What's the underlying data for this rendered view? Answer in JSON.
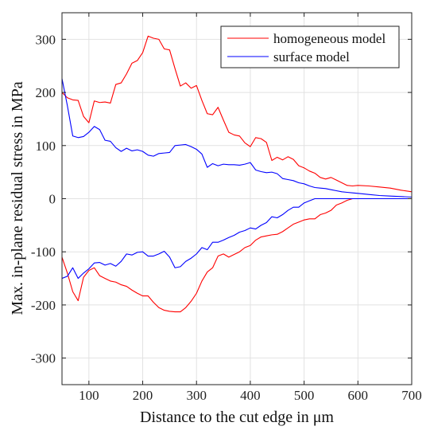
{
  "chart_data": {
    "type": "line",
    "xlabel": "Distance to the cut edge in μm",
    "ylabel": "Max. in-plane residual stress in MPa",
    "xlim": [
      50,
      700
    ],
    "ylim": [
      -350,
      350
    ],
    "xticks": [
      100,
      200,
      300,
      400,
      500,
      600,
      700
    ],
    "yticks": [
      -300,
      -200,
      -100,
      0,
      100,
      200,
      300
    ],
    "grid": true,
    "legend_position": "top-right",
    "series": [
      {
        "name": "homogeneous model",
        "color": "#ff0000",
        "lines": [
          [
            [
              50,
              200
            ],
            [
              60,
              190
            ],
            [
              70,
              186
            ],
            [
              80,
              185
            ],
            [
              90,
              155
            ],
            [
              100,
              143
            ],
            [
              110,
              184
            ],
            [
              120,
              181
            ],
            [
              130,
              182
            ],
            [
              140,
              180
            ],
            [
              150,
              215
            ],
            [
              160,
              218
            ],
            [
              170,
              235
            ],
            [
              180,
              255
            ],
            [
              190,
              260
            ],
            [
              200,
              275
            ],
            [
              210,
              306
            ],
            [
              220,
              302
            ],
            [
              230,
              300
            ],
            [
              240,
              282
            ],
            [
              250,
              280
            ],
            [
              260,
              245
            ],
            [
              270,
              212
            ],
            [
              280,
              218
            ],
            [
              290,
              208
            ],
            [
              300,
              213
            ],
            [
              310,
              185
            ],
            [
              320,
              160
            ],
            [
              330,
              158
            ],
            [
              340,
              172
            ],
            [
              350,
              148
            ],
            [
              360,
              125
            ],
            [
              370,
              120
            ],
            [
              380,
              118
            ],
            [
              390,
              105
            ],
            [
              400,
              98
            ],
            [
              410,
              115
            ],
            [
              420,
              113
            ],
            [
              430,
              106
            ],
            [
              440,
              72
            ],
            [
              450,
              78
            ],
            [
              460,
              73
            ],
            [
              470,
              79
            ],
            [
              480,
              74
            ],
            [
              490,
              62
            ],
            [
              500,
              58
            ],
            [
              510,
              52
            ],
            [
              520,
              48
            ],
            [
              530,
              40
            ],
            [
              540,
              37
            ],
            [
              550,
              40
            ],
            [
              560,
              35
            ],
            [
              570,
              30
            ],
            [
              580,
              25
            ],
            [
              590,
              24
            ],
            [
              600,
              25
            ],
            [
              620,
              24
            ],
            [
              640,
              22
            ],
            [
              660,
              20
            ],
            [
              680,
              16
            ],
            [
              700,
              13
            ]
          ],
          [
            [
              50,
              -110
            ],
            [
              60,
              -140
            ],
            [
              70,
              -175
            ],
            [
              80,
              -192
            ],
            [
              90,
              -148
            ],
            [
              100,
              -135
            ],
            [
              110,
              -130
            ],
            [
              120,
              -145
            ],
            [
              130,
              -150
            ],
            [
              140,
              -155
            ],
            [
              150,
              -157
            ],
            [
              160,
              -162
            ],
            [
              170,
              -165
            ],
            [
              180,
              -172
            ],
            [
              190,
              -178
            ],
            [
              200,
              -183
            ],
            [
              210,
              -183
            ],
            [
              220,
              -195
            ],
            [
              230,
              -205
            ],
            [
              240,
              -210
            ],
            [
              250,
              -212
            ],
            [
              260,
              -213
            ],
            [
              270,
              -213
            ],
            [
              280,
              -205
            ],
            [
              290,
              -193
            ],
            [
              300,
              -178
            ],
            [
              310,
              -155
            ],
            [
              320,
              -138
            ],
            [
              330,
              -130
            ],
            [
              340,
              -108
            ],
            [
              350,
              -104
            ],
            [
              360,
              -110
            ],
            [
              370,
              -105
            ],
            [
              380,
              -100
            ],
            [
              390,
              -92
            ],
            [
              400,
              -88
            ],
            [
              410,
              -78
            ],
            [
              420,
              -72
            ],
            [
              430,
              -70
            ],
            [
              440,
              -68
            ],
            [
              450,
              -67
            ],
            [
              460,
              -62
            ],
            [
              470,
              -55
            ],
            [
              480,
              -48
            ],
            [
              490,
              -44
            ],
            [
              500,
              -40
            ],
            [
              510,
              -38
            ],
            [
              520,
              -38
            ],
            [
              530,
              -30
            ],
            [
              540,
              -27
            ],
            [
              550,
              -22
            ],
            [
              560,
              -12
            ],
            [
              570,
              -8
            ],
            [
              580,
              -3
            ],
            [
              590,
              0
            ],
            [
              600,
              0
            ],
            [
              650,
              0
            ],
            [
              700,
              0
            ]
          ]
        ]
      },
      {
        "name": "surface model",
        "color": "#0000ff",
        "lines": [
          [
            [
              50,
              226
            ],
            [
              60,
              175
            ],
            [
              70,
              118
            ],
            [
              80,
              115
            ],
            [
              90,
              117
            ],
            [
              100,
              125
            ],
            [
              110,
              136
            ],
            [
              120,
              130
            ],
            [
              130,
              110
            ],
            [
              140,
              108
            ],
            [
              150,
              96
            ],
            [
              160,
              89
            ],
            [
              170,
              95
            ],
            [
              180,
              90
            ],
            [
              190,
              92
            ],
            [
              200,
              89
            ],
            [
              210,
              82
            ],
            [
              220,
              80
            ],
            [
              230,
              85
            ],
            [
              240,
              86
            ],
            [
              250,
              87
            ],
            [
              260,
              100
            ],
            [
              270,
              101
            ],
            [
              280,
              102
            ],
            [
              290,
              98
            ],
            [
              300,
              93
            ],
            [
              310,
              84
            ],
            [
              320,
              59
            ],
            [
              330,
              66
            ],
            [
              340,
              62
            ],
            [
              350,
              65
            ],
            [
              360,
              64
            ],
            [
              370,
              64
            ],
            [
              380,
              63
            ],
            [
              390,
              65
            ],
            [
              400,
              68
            ],
            [
              410,
              54
            ],
            [
              420,
              51
            ],
            [
              430,
              49
            ],
            [
              440,
              50
            ],
            [
              450,
              47
            ],
            [
              460,
              38
            ],
            [
              470,
              36
            ],
            [
              480,
              34
            ],
            [
              490,
              30
            ],
            [
              500,
              28
            ],
            [
              510,
              24
            ],
            [
              520,
              21
            ],
            [
              530,
              20
            ],
            [
              540,
              19
            ],
            [
              550,
              17
            ],
            [
              560,
              15
            ],
            [
              570,
              13
            ],
            [
              580,
              12
            ],
            [
              590,
              11
            ],
            [
              600,
              10
            ],
            [
              620,
              8
            ],
            [
              640,
              6
            ],
            [
              660,
              5
            ],
            [
              680,
              4
            ],
            [
              700,
              3
            ]
          ],
          [
            [
              50,
              -150
            ],
            [
              60,
              -146
            ],
            [
              70,
              -130
            ],
            [
              80,
              -150
            ],
            [
              90,
              -140
            ],
            [
              100,
              -132
            ],
            [
              110,
              -121
            ],
            [
              120,
              -120
            ],
            [
              130,
              -125
            ],
            [
              140,
              -122
            ],
            [
              150,
              -127
            ],
            [
              160,
              -118
            ],
            [
              170,
              -104
            ],
            [
              180,
              -106
            ],
            [
              190,
              -101
            ],
            [
              200,
              -100
            ],
            [
              210,
              -108
            ],
            [
              220,
              -108
            ],
            [
              230,
              -104
            ],
            [
              240,
              -99
            ],
            [
              250,
              -110
            ],
            [
              260,
              -130
            ],
            [
              270,
              -128
            ],
            [
              280,
              -118
            ],
            [
              290,
              -112
            ],
            [
              300,
              -104
            ],
            [
              310,
              -92
            ],
            [
              320,
              -96
            ],
            [
              330,
              -82
            ],
            [
              340,
              -82
            ],
            [
              350,
              -78
            ],
            [
              360,
              -73
            ],
            [
              370,
              -69
            ],
            [
              380,
              -63
            ],
            [
              390,
              -60
            ],
            [
              400,
              -55
            ],
            [
              410,
              -57
            ],
            [
              420,
              -50
            ],
            [
              430,
              -45
            ],
            [
              440,
              -34
            ],
            [
              450,
              -36
            ],
            [
              460,
              -30
            ],
            [
              470,
              -22
            ],
            [
              480,
              -16
            ],
            [
              490,
              -16
            ],
            [
              500,
              -8
            ],
            [
              510,
              -4
            ],
            [
              520,
              0
            ],
            [
              530,
              0
            ],
            [
              560,
              0
            ],
            [
              600,
              0
            ],
            [
              650,
              0
            ],
            [
              700,
              0
            ]
          ]
        ]
      }
    ]
  }
}
